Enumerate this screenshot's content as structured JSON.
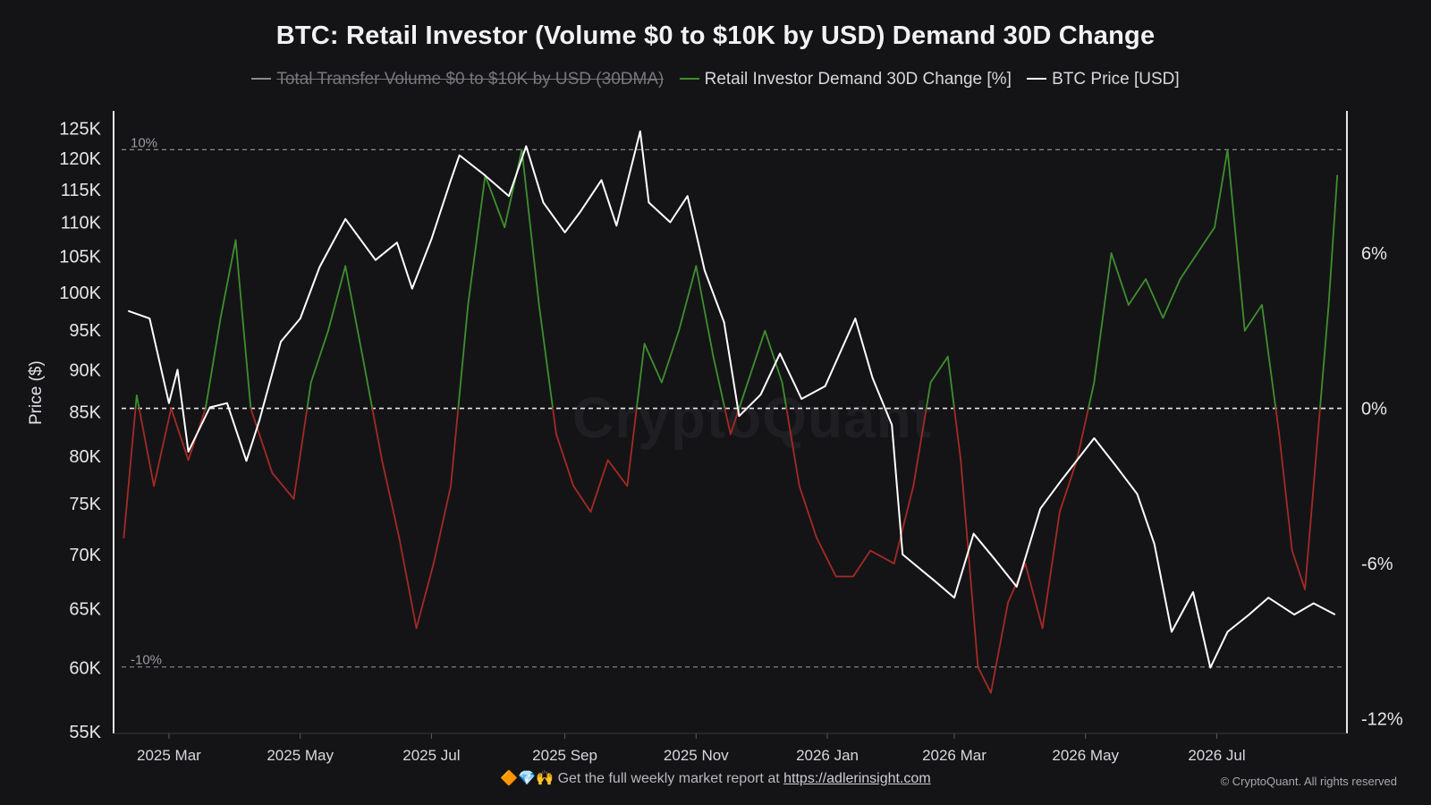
{
  "chart_data": {
    "type": "line",
    "title": "BTC: Retail Investor (Volume $0 to $10K by USD) Demand 30D Change",
    "legend": [
      {
        "label": "Total Transfer Volume  $0 to $10K by USD (30DMA)",
        "color": "#8a8a8e",
        "disabled": true
      },
      {
        "label": "Retail Investor Demand 30D Change [%]",
        "color": "#3f8f2e",
        "disabled": false
      },
      {
        "label": "BTC Price [USD]",
        "color": "#ffffff",
        "disabled": false
      }
    ],
    "y_left": {
      "label": "Price ($)",
      "scale": "log",
      "ticks": [
        55000,
        60000,
        65000,
        70000,
        75000,
        80000,
        85000,
        90000,
        95000,
        100000,
        105000,
        110000,
        115000,
        120000,
        125000
      ],
      "tick_labels": [
        "55K",
        "60K",
        "65K",
        "70K",
        "75K",
        "80K",
        "85K",
        "90K",
        "95K",
        "100K",
        "105K",
        "110K",
        "115K",
        "120K",
        "125K"
      ],
      "range": [
        55000,
        128000
      ]
    },
    "y_right": {
      "ticks": [
        -12,
        -6,
        0,
        6
      ],
      "tick_labels": [
        "-12%",
        "-6%",
        "0%",
        "6%"
      ],
      "range": [
        -12.5,
        11.5
      ]
    },
    "x_ticks": [
      "2025 Mar",
      "2025 May",
      "2025 Jul",
      "2025 Sep",
      "2025 Nov",
      "2026 Jan",
      "2026 Mar",
      "2026 May",
      "2026 Jul"
    ],
    "x_tick_dates": [
      "2025-03-01",
      "2025-05-01",
      "2025-07-01",
      "2025-09-01",
      "2025-11-01",
      "2026-01-01",
      "2026-03-01",
      "2026-05-01",
      "2026-07-01"
    ],
    "x_range": [
      "2025-02-07",
      "2026-08-28"
    ],
    "reference_lines": [
      {
        "value": 10,
        "label": "10%"
      },
      {
        "value": 0,
        "label": ""
      },
      {
        "value": -10,
        "label": "-10%"
      }
    ],
    "colors": {
      "positive": "#3f8f2e",
      "negative": "#a52a24",
      "price": "#ffffff"
    },
    "series": [
      {
        "name": "BTC Price [USD]",
        "axis": "left",
        "points": [
          [
            "2025-02-10",
            97500
          ],
          [
            "2025-02-20",
            96500
          ],
          [
            "2025-03-01",
            86000
          ],
          [
            "2025-03-05",
            90000
          ],
          [
            "2025-03-10",
            80500
          ],
          [
            "2025-03-20",
            85500
          ],
          [
            "2025-03-28",
            86000
          ],
          [
            "2025-04-06",
            79500
          ],
          [
            "2025-04-12",
            84000
          ],
          [
            "2025-04-22",
            93500
          ],
          [
            "2025-05-01",
            96500
          ],
          [
            "2025-05-10",
            103500
          ],
          [
            "2025-05-22",
            110500
          ],
          [
            "2025-06-05",
            104500
          ],
          [
            "2025-06-15",
            107000
          ],
          [
            "2025-06-22",
            100500
          ],
          [
            "2025-07-01",
            107500
          ],
          [
            "2025-07-10",
            116500
          ],
          [
            "2025-07-14",
            120500
          ],
          [
            "2025-07-25",
            117500
          ],
          [
            "2025-08-06",
            114000
          ],
          [
            "2025-08-14",
            122000
          ],
          [
            "2025-08-22",
            113000
          ],
          [
            "2025-09-01",
            108500
          ],
          [
            "2025-09-08",
            111500
          ],
          [
            "2025-09-18",
            116500
          ],
          [
            "2025-09-25",
            109500
          ],
          [
            "2025-10-06",
            124500
          ],
          [
            "2025-10-10",
            113000
          ],
          [
            "2025-10-20",
            110000
          ],
          [
            "2025-10-28",
            114000
          ],
          [
            "2025-11-05",
            103000
          ],
          [
            "2025-11-14",
            96000
          ],
          [
            "2025-11-21",
            84500
          ],
          [
            "2025-12-01",
            87000
          ],
          [
            "2025-12-10",
            92000
          ],
          [
            "2025-12-20",
            86500
          ],
          [
            "2025-12-31",
            88000
          ],
          [
            "2026-01-14",
            96500
          ],
          [
            "2026-01-22",
            89000
          ],
          [
            "2026-01-31",
            83500
          ],
          [
            "2026-02-05",
            70000
          ],
          [
            "2026-02-20",
            67500
          ],
          [
            "2026-03-01",
            66000
          ],
          [
            "2026-03-10",
            72000
          ],
          [
            "2026-03-20",
            69500
          ],
          [
            "2026-03-30",
            67000
          ],
          [
            "2026-04-10",
            74500
          ],
          [
            "2026-04-20",
            77500
          ],
          [
            "2026-05-05",
            82000
          ],
          [
            "2026-05-15",
            79000
          ],
          [
            "2026-05-25",
            76000
          ],
          [
            "2026-06-02",
            71000
          ],
          [
            "2026-06-10",
            63000
          ],
          [
            "2026-06-20",
            66500
          ],
          [
            "2026-06-28",
            60000
          ],
          [
            "2026-07-06",
            63000
          ],
          [
            "2026-07-16",
            64500
          ],
          [
            "2026-07-25",
            66000
          ],
          [
            "2026-08-06",
            64500
          ],
          [
            "2026-08-15",
            65500
          ],
          [
            "2026-08-25",
            64500
          ]
        ]
      },
      {
        "name": "Retail Investor Demand 30D Change [%]",
        "axis": "right",
        "points": [
          [
            "2025-02-08",
            -5
          ],
          [
            "2025-02-14",
            0.5
          ],
          [
            "2025-02-22",
            -3
          ],
          [
            "2025-03-02",
            0
          ],
          [
            "2025-03-10",
            -2
          ],
          [
            "2025-03-18",
            0
          ],
          [
            "2025-03-25",
            3.5
          ],
          [
            "2025-04-01",
            6.5
          ],
          [
            "2025-04-08",
            0
          ],
          [
            "2025-04-18",
            -2.5
          ],
          [
            "2025-04-28",
            -3.5
          ],
          [
            "2025-05-06",
            1
          ],
          [
            "2025-05-14",
            3
          ],
          [
            "2025-05-22",
            5.5
          ],
          [
            "2025-05-30",
            2
          ],
          [
            "2025-06-08",
            -2
          ],
          [
            "2025-06-16",
            -5
          ],
          [
            "2025-06-24",
            -8.5
          ],
          [
            "2025-07-02",
            -6
          ],
          [
            "2025-07-10",
            -3
          ],
          [
            "2025-07-18",
            4
          ],
          [
            "2025-07-26",
            9
          ],
          [
            "2025-08-04",
            7
          ],
          [
            "2025-08-12",
            10
          ],
          [
            "2025-08-20",
            4
          ],
          [
            "2025-08-28",
            -1
          ],
          [
            "2025-09-05",
            -3
          ],
          [
            "2025-09-13",
            -4
          ],
          [
            "2025-09-21",
            -2
          ],
          [
            "2025-09-30",
            -3
          ],
          [
            "2025-10-08",
            2.5
          ],
          [
            "2025-10-16",
            1
          ],
          [
            "2025-10-24",
            3
          ],
          [
            "2025-11-01",
            5.5
          ],
          [
            "2025-11-09",
            2
          ],
          [
            "2025-11-17",
            -1
          ],
          [
            "2025-11-25",
            1
          ],
          [
            "2025-12-03",
            3
          ],
          [
            "2025-12-11",
            1
          ],
          [
            "2025-12-19",
            -3
          ],
          [
            "2025-12-27",
            -5
          ],
          [
            "2026-01-05",
            -6.5
          ],
          [
            "2026-01-13",
            -6.5
          ],
          [
            "2026-01-21",
            -5.5
          ],
          [
            "2026-02-01",
            -6
          ],
          [
            "2026-02-10",
            -3
          ],
          [
            "2026-02-18",
            1
          ],
          [
            "2026-02-26",
            2
          ],
          [
            "2026-03-04",
            -2
          ],
          [
            "2026-03-12",
            -10
          ],
          [
            "2026-03-18",
            -11
          ],
          [
            "2026-03-26",
            -7.5
          ],
          [
            "2026-04-03",
            -6
          ],
          [
            "2026-04-11",
            -8.5
          ],
          [
            "2026-04-19",
            -4
          ],
          [
            "2026-04-27",
            -2
          ],
          [
            "2026-05-05",
            1
          ],
          [
            "2026-05-13",
            6
          ],
          [
            "2026-05-21",
            4
          ],
          [
            "2026-05-29",
            5
          ],
          [
            "2026-06-06",
            3.5
          ],
          [
            "2026-06-14",
            5
          ],
          [
            "2026-06-22",
            6
          ],
          [
            "2026-06-30",
            7
          ],
          [
            "2026-07-06",
            10
          ],
          [
            "2026-07-14",
            3
          ],
          [
            "2026-07-22",
            4
          ],
          [
            "2026-07-30",
            -1
          ],
          [
            "2026-08-05",
            -5.5
          ],
          [
            "2026-08-11",
            -7
          ],
          [
            "2026-08-17",
            -1
          ],
          [
            "2026-08-22",
            4
          ],
          [
            "2026-08-26",
            9
          ]
        ]
      }
    ]
  },
  "watermark": "CryptoQuant",
  "footer": {
    "emoji": "🔶💎🙌",
    "text": "Get the full weekly market report at",
    "link": "https://adlerinsight.com"
  },
  "copyright": "© CryptoQuant. All rights reserved"
}
